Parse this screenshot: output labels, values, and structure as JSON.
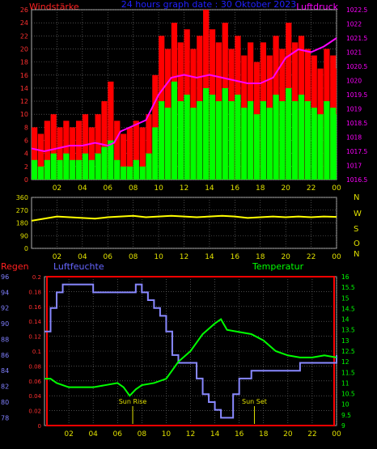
{
  "chart_data": [
    {
      "type": "bar",
      "title": "24 hours graph date : 30 Oktober 2023",
      "left_label": "Windstärke",
      "right_label": "Luftdruck",
      "x_ticks": [
        "02",
        "04",
        "06",
        "08",
        "10",
        "12",
        "14",
        "16",
        "18",
        "20",
        "22",
        "00"
      ],
      "y_left_ticks": [
        "0",
        "2",
        "4",
        "6",
        "8",
        "10",
        "12",
        "14",
        "16",
        "18",
        "20",
        "22",
        "24",
        "26"
      ],
      "y_left_range": [
        0,
        26
      ],
      "y_right_ticks": [
        "1016.5",
        "1017",
        "1017.5",
        "1018",
        "1018.5",
        "1019",
        "1019.5",
        "1020",
        "1020.5",
        "1021",
        "1021.5",
        "1022",
        "1022.5"
      ],
      "y_right_range": [
        1016.5,
        1022.5
      ],
      "series": [
        {
          "role": "wind-average",
          "color": "#00ff00",
          "x": [
            0,
            0.5,
            1,
            1.5,
            2,
            2.5,
            3,
            3.5,
            4,
            4.5,
            5,
            5.5,
            6,
            6.5,
            7,
            7.5,
            8,
            8.5,
            9,
            9.5,
            10,
            10.5,
            11,
            11.5,
            12,
            12.5,
            13,
            13.5,
            14,
            14.5,
            15,
            15.5,
            16,
            16.5,
            17,
            17.5,
            18,
            18.5,
            19,
            19.5,
            20,
            20.5,
            21,
            21.5,
            22,
            22.5,
            23,
            23.5,
            24
          ],
          "values": [
            3,
            2,
            3,
            4,
            3,
            4,
            3,
            3,
            4,
            3,
            4,
            5,
            6,
            3,
            2,
            2,
            3,
            2,
            4,
            8,
            12,
            11,
            15,
            12,
            13,
            11,
            12,
            14,
            13,
            12,
            14,
            12,
            13,
            11,
            12,
            10,
            12,
            11,
            13,
            12,
            14,
            12,
            13,
            12,
            11,
            10,
            12,
            11,
            10
          ]
        },
        {
          "role": "wind-gust",
          "color": "#ff0000",
          "x": [
            0,
            0.5,
            1,
            1.5,
            2,
            2.5,
            3,
            3.5,
            4,
            4.5,
            5,
            5.5,
            6,
            6.5,
            7,
            7.5,
            8,
            8.5,
            9,
            9.5,
            10,
            10.5,
            11,
            11.5,
            12,
            12.5,
            13,
            13.5,
            14,
            14.5,
            15,
            15.5,
            16,
            16.5,
            17,
            17.5,
            18,
            18.5,
            19,
            19.5,
            20,
            20.5,
            21,
            21.5,
            22,
            22.5,
            23,
            23.5,
            24
          ],
          "values": [
            8,
            7,
            9,
            10,
            8,
            9,
            8,
            9,
            10,
            8,
            10,
            12,
            15,
            9,
            7,
            8,
            9,
            8,
            10,
            16,
            22,
            20,
            24,
            21,
            23,
            20,
            22,
            26,
            23,
            21,
            24,
            20,
            22,
            19,
            21,
            18,
            21,
            19,
            22,
            20,
            24,
            21,
            22,
            20,
            19,
            17,
            20,
            19,
            17
          ]
        },
        {
          "role": "pressure",
          "color": "#ff00ff",
          "x": [
            0,
            1,
            2,
            3,
            4,
            5,
            6,
            6.5,
            7,
            8,
            9,
            10,
            11,
            12,
            13,
            14,
            15,
            16,
            17,
            18,
            19,
            20,
            21,
            22,
            23,
            24
          ],
          "values": [
            1017.6,
            1017.5,
            1017.6,
            1017.7,
            1017.7,
            1017.8,
            1017.7,
            1017.8,
            1018.2,
            1018.4,
            1018.6,
            1019.5,
            1020.1,
            1020.2,
            1020.1,
            1020.2,
            1020.1,
            1020.0,
            1019.9,
            1019.9,
            1020.1,
            1020.8,
            1021.1,
            1021.0,
            1021.2,
            1021.5
          ]
        }
      ]
    },
    {
      "type": "line",
      "y_left_ticks": [
        "0",
        "90",
        "180",
        "270",
        "360"
      ],
      "y_range": [
        0,
        360
      ],
      "x_ticks": [
        "02",
        "04",
        "06",
        "08",
        "10",
        "12",
        "14",
        "16",
        "18",
        "20",
        "22",
        "00"
      ],
      "right_letters": [
        "N",
        "W",
        "S",
        "O",
        "N"
      ],
      "series": [
        {
          "role": "wind-direction",
          "color": "#ffff00",
          "x": [
            0,
            1,
            2,
            3,
            4,
            5,
            6,
            7,
            8,
            9,
            10,
            11,
            12,
            13,
            14,
            15,
            16,
            17,
            18,
            19,
            20,
            21,
            22,
            23,
            24
          ],
          "values": [
            195,
            210,
            225,
            220,
            215,
            210,
            220,
            225,
            230,
            220,
            225,
            230,
            225,
            220,
            225,
            230,
            225,
            215,
            220,
            225,
            220,
            225,
            220,
            225,
            222
          ]
        }
      ]
    },
    {
      "type": "line",
      "left_label": "Regen",
      "mid_label": "Luftfeuchte",
      "right_label": "Temperatur",
      "x_ticks": [
        "02",
        "04",
        "06",
        "08",
        "10",
        "12",
        "14",
        "16",
        "18",
        "20",
        "22",
        "00"
      ],
      "humidity_ticks": [
        "78",
        "80",
        "82",
        "84",
        "86",
        "88",
        "90",
        "92",
        "94",
        "96"
      ],
      "humidity_range": [
        77,
        96
      ],
      "rain_ticks": [
        "0",
        "0.02",
        "0.04",
        "0.06",
        "0.08",
        "0.1",
        "0.12",
        "0.14",
        "0.16",
        "0.18",
        "0.2"
      ],
      "rain_range": [
        0,
        0.2
      ],
      "temp_ticks": [
        "9",
        "9.5",
        "10",
        "10.5",
        "11",
        "11.5",
        "12",
        "12.5",
        "13",
        "13.5",
        "14",
        "14.5",
        "15",
        "15.5",
        "16"
      ],
      "temp_range": [
        9,
        16
      ],
      "annotations": [
        {
          "text": "Sun Rise",
          "x": 7.25
        },
        {
          "text": "Sun Set",
          "x": 17.25
        }
      ],
      "series": [
        {
          "role": "humidity",
          "color": "#8888ff",
          "x": [
            0,
            0.5,
            1,
            1.5,
            2,
            3,
            4,
            5,
            6,
            7,
            7.5,
            8,
            8.5,
            9,
            9.5,
            10,
            10.5,
            11,
            11.5,
            12,
            12.5,
            13,
            13.5,
            14,
            14.5,
            15,
            15.5,
            16,
            17,
            18,
            19,
            20,
            21,
            22,
            23,
            24
          ],
          "values": [
            89,
            92,
            94,
            95,
            95,
            95,
            94,
            94,
            94,
            94,
            95,
            94,
            93,
            92,
            91,
            89,
            86,
            85,
            85,
            85,
            83,
            81,
            80,
            79,
            78,
            78,
            81,
            83,
            84,
            84,
            84,
            84,
            85,
            85,
            85,
            86
          ]
        },
        {
          "role": "temperature",
          "color": "#00ff00",
          "x": [
            0,
            0.5,
            1,
            1.5,
            2,
            3,
            4,
            5,
            6,
            6.5,
            7,
            7.5,
            8,
            9,
            10,
            11,
            12,
            13,
            14,
            14.5,
            15,
            16,
            17,
            18,
            19,
            20,
            21,
            22,
            23,
            24
          ],
          "values": [
            11.2,
            11.2,
            11.0,
            10.9,
            10.8,
            10.8,
            10.8,
            10.9,
            11.0,
            10.8,
            10.4,
            10.7,
            10.9,
            11.0,
            11.2,
            12.0,
            12.5,
            13.3,
            13.8,
            14.0,
            13.5,
            13.4,
            13.3,
            13.0,
            12.5,
            12.3,
            12.2,
            12.2,
            12.3,
            12.2
          ]
        },
        {
          "role": "rain",
          "color": "#ff0000",
          "x": [
            0,
            24
          ],
          "values": [
            0,
            0
          ]
        }
      ]
    }
  ]
}
